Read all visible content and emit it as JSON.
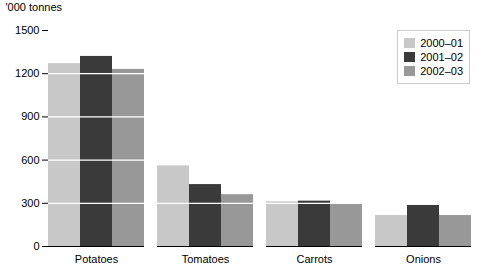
{
  "chart_data": {
    "type": "bar",
    "categories": [
      "Potatoes",
      "Tomatoes",
      "Carrots",
      "Onions"
    ],
    "series": [
      {
        "name": "2000–01",
        "values": [
          1270,
          560,
          310,
          215
        ],
        "color": "#c8c8c8"
      },
      {
        "name": "2001–02",
        "values": [
          1320,
          430,
          315,
          285
        ],
        "color": "#3a3a3a"
      },
      {
        "name": "2002–03",
        "values": [
          1230,
          360,
          295,
          215
        ],
        "color": "#989898"
      }
    ],
    "ylabel": "'000 tonnes",
    "ylim": [
      0,
      1500
    ],
    "yticks": [
      0,
      300,
      600,
      900,
      1200,
      1500
    ],
    "grid": true,
    "grid_color": "#ffffff",
    "legend": "upper right"
  }
}
